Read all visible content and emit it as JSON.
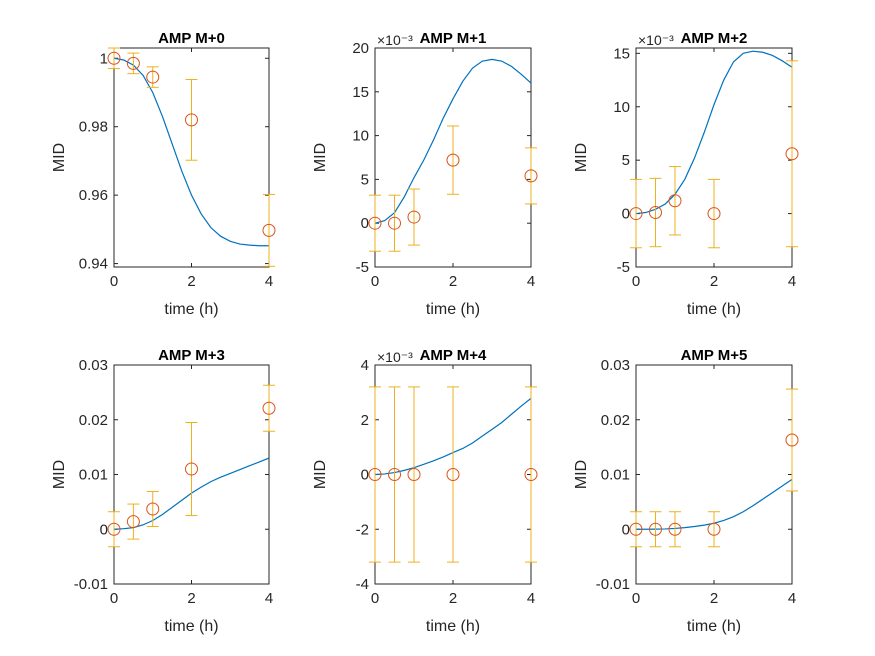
{
  "figure": {
    "background": "#ffffff"
  },
  "chart_data": [
    {
      "type": "line",
      "title": "AMP M+0",
      "xlabel": "time (h)",
      "ylabel": "MID",
      "xlim": [
        0,
        4
      ],
      "ylim": [
        0.939,
        1.003
      ],
      "xticks": [
        0,
        2,
        4
      ],
      "xtick_labels": [
        "0",
        "2",
        "4"
      ],
      "yticks": [
        0.94,
        0.96,
        0.98,
        1.0
      ],
      "ytick_labels": [
        "0.94",
        "0.96",
        "0.98",
        "1"
      ],
      "exponent_label": "",
      "model_curve": {
        "x": [
          0,
          0.25,
          0.5,
          0.75,
          1,
          1.25,
          1.5,
          1.75,
          2,
          2.25,
          2.5,
          2.75,
          3,
          3.25,
          3.5,
          3.75,
          4
        ],
        "y": [
          1.0,
          0.9995,
          0.998,
          0.995,
          0.99,
          0.983,
          0.975,
          0.967,
          0.96,
          0.9545,
          0.9505,
          0.948,
          0.9465,
          0.9457,
          0.9454,
          0.9452,
          0.9452
        ],
        "color": "#0072bd"
      },
      "measured": {
        "x": [
          0,
          0.5,
          1,
          2,
          4
        ],
        "y": [
          1.0,
          0.9985,
          0.9945,
          0.982,
          0.9497
        ],
        "err": [
          0.003,
          0.003,
          0.003,
          0.0118,
          0.0105
        ],
        "marker_color": "#d95319",
        "errorbar_color": "#edb120"
      }
    },
    {
      "type": "line",
      "title": "AMP M+1",
      "xlabel": "time (h)",
      "ylabel": "MID",
      "xlim": [
        0,
        4
      ],
      "ylim": [
        -5,
        20
      ],
      "xticks": [
        0,
        2,
        4
      ],
      "xtick_labels": [
        "0",
        "2",
        "4"
      ],
      "yticks": [
        -5,
        0,
        5,
        10,
        15,
        20
      ],
      "ytick_labels": [
        "-5",
        "0",
        "5",
        "10",
        "15",
        "20"
      ],
      "exponent_label": "×10⁻³",
      "model_curve": {
        "x": [
          0,
          0.25,
          0.5,
          0.75,
          1,
          1.25,
          1.5,
          1.75,
          2,
          2.25,
          2.5,
          2.75,
          3,
          3.25,
          3.5,
          3.75,
          4
        ],
        "y": [
          0,
          0.3,
          1.2,
          3.0,
          5.2,
          7.2,
          9.5,
          12.0,
          14.2,
          16.2,
          17.7,
          18.5,
          18.7,
          18.5,
          17.9,
          17.0,
          16.0
        ],
        "color": "#0072bd"
      },
      "measured": {
        "x": [
          0,
          0.5,
          1,
          2,
          4
        ],
        "y": [
          0,
          0,
          0.7,
          7.2,
          5.4
        ],
        "err": [
          3.2,
          3.2,
          3.2,
          3.9,
          3.2
        ],
        "marker_color": "#d95319",
        "errorbar_color": "#edb120"
      }
    },
    {
      "type": "line",
      "title": "AMP M+2",
      "xlabel": "time (h)",
      "ylabel": "MID",
      "xlim": [
        0,
        4
      ],
      "ylim": [
        -5,
        15.5
      ],
      "xticks": [
        0,
        2,
        4
      ],
      "xtick_labels": [
        "0",
        "2",
        "4"
      ],
      "yticks": [
        -5,
        0,
        5,
        10,
        15
      ],
      "ytick_labels": [
        "-5",
        "0",
        "5",
        "10",
        "15"
      ],
      "exponent_label": "×10⁻³",
      "model_curve": {
        "x": [
          0,
          0.25,
          0.5,
          0.75,
          1,
          1.25,
          1.5,
          1.75,
          2,
          2.25,
          2.5,
          2.75,
          3,
          3.25,
          3.5,
          3.75,
          4
        ],
        "y": [
          0,
          0.1,
          0.4,
          0.9,
          1.8,
          3.2,
          5.2,
          7.6,
          10.2,
          12.5,
          14.2,
          15.0,
          15.2,
          15.1,
          14.8,
          14.3,
          13.7
        ],
        "color": "#0072bd"
      },
      "measured": {
        "x": [
          0,
          0.5,
          1,
          2,
          4
        ],
        "y": [
          0,
          0.1,
          1.2,
          0,
          5.6
        ],
        "err": [
          3.2,
          3.2,
          3.2,
          3.2,
          8.7
        ],
        "marker_color": "#d95319",
        "errorbar_color": "#edb120"
      }
    },
    {
      "type": "line",
      "title": "AMP M+3",
      "xlabel": "time (h)",
      "ylabel": "MID",
      "xlim": [
        0,
        4
      ],
      "ylim": [
        -0.01,
        0.03
      ],
      "xticks": [
        0,
        2,
        4
      ],
      "xtick_labels": [
        "0",
        "2",
        "4"
      ],
      "yticks": [
        -0.01,
        0,
        0.01,
        0.02,
        0.03
      ],
      "ytick_labels": [
        "-0.01",
        "0",
        "0.01",
        "0.02",
        "0.03"
      ],
      "exponent_label": "",
      "model_curve": {
        "x": [
          0,
          0.25,
          0.5,
          0.75,
          1,
          1.25,
          1.5,
          1.75,
          2,
          2.25,
          2.5,
          2.75,
          3,
          3.25,
          3.5,
          3.75,
          4
        ],
        "y": [
          0,
          0.0001,
          0.0003,
          0.0008,
          0.0016,
          0.0027,
          0.004,
          0.0053,
          0.0066,
          0.0077,
          0.0087,
          0.0095,
          0.0102,
          0.0109,
          0.0116,
          0.0123,
          0.013
        ],
        "color": "#0072bd"
      },
      "measured": {
        "x": [
          0,
          0.5,
          1,
          2,
          4
        ],
        "y": [
          0,
          0.0014,
          0.0037,
          0.011,
          0.0221
        ],
        "err": [
          0.0032,
          0.0032,
          0.0032,
          0.0085,
          0.0042
        ],
        "marker_color": "#d95319",
        "errorbar_color": "#edb120"
      }
    },
    {
      "type": "line",
      "title": "AMP M+4",
      "xlabel": "time (h)",
      "ylabel": "MID",
      "xlim": [
        0,
        4
      ],
      "ylim": [
        -4,
        4
      ],
      "xticks": [
        0,
        2,
        4
      ],
      "xtick_labels": [
        "0",
        "2",
        "4"
      ],
      "yticks": [
        -4,
        -2,
        0,
        2,
        4
      ],
      "ytick_labels": [
        "-4",
        "-2",
        "0",
        "2",
        "4"
      ],
      "exponent_label": "×10⁻³",
      "model_curve": {
        "x": [
          0,
          0.25,
          0.5,
          0.75,
          1,
          1.25,
          1.5,
          1.75,
          2,
          2.25,
          2.5,
          2.75,
          3,
          3.25,
          3.5,
          3.75,
          4
        ],
        "y": [
          0,
          0.02,
          0.07,
          0.15,
          0.25,
          0.37,
          0.5,
          0.64,
          0.8,
          0.95,
          1.15,
          1.4,
          1.65,
          1.9,
          2.2,
          2.5,
          2.78
        ],
        "color": "#0072bd"
      },
      "measured": {
        "x": [
          0,
          0.5,
          1,
          2,
          4
        ],
        "y": [
          0,
          0,
          0,
          0,
          0
        ],
        "err": [
          3.2,
          3.2,
          3.2,
          3.2,
          3.2
        ],
        "marker_color": "#d95319",
        "errorbar_color": "#edb120"
      }
    },
    {
      "type": "line",
      "title": "AMP M+5",
      "xlabel": "time (h)",
      "ylabel": "MID",
      "xlim": [
        0,
        4
      ],
      "ylim": [
        -0.01,
        0.03
      ],
      "xticks": [
        0,
        2,
        4
      ],
      "xtick_labels": [
        "0",
        "2",
        "4"
      ],
      "yticks": [
        -0.01,
        0,
        0.01,
        0.02,
        0.03
      ],
      "ytick_labels": [
        "-0.01",
        "0",
        "0.01",
        "0.02",
        "0.03"
      ],
      "exponent_label": "",
      "model_curve": {
        "x": [
          0,
          0.25,
          0.5,
          0.75,
          1,
          1.25,
          1.5,
          1.75,
          2,
          2.25,
          2.5,
          2.75,
          3,
          3.25,
          3.5,
          3.75,
          4
        ],
        "y": [
          0,
          0,
          2e-05,
          6e-05,
          0.00015,
          0.0003,
          0.0005,
          0.00075,
          0.0011,
          0.0016,
          0.0023,
          0.0032,
          0.0043,
          0.0055,
          0.0067,
          0.0079,
          0.0091
        ],
        "color": "#0072bd"
      },
      "measured": {
        "x": [
          0,
          0.5,
          1,
          2,
          4
        ],
        "y": [
          0,
          0,
          0,
          0,
          0.0163
        ],
        "err": [
          0.0032,
          0.0032,
          0.0032,
          0.0032,
          0.0093
        ],
        "marker_color": "#d95319",
        "errorbar_color": "#edb120"
      }
    }
  ]
}
